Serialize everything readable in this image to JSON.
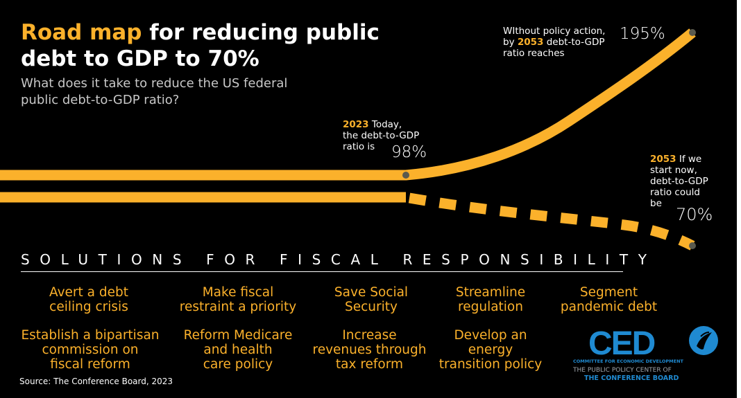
{
  "title": {
    "highlight": "Road map",
    "rest": " for reducing public debt to GDP to 70%"
  },
  "subtitle": "What does it take to reduce the US federal public debt-to-GDP ratio?",
  "annotations": {
    "today": {
      "year": "2023",
      "text_a": " Today,",
      "text_b": "the debt-to-GDP",
      "text_c": "ratio is",
      "value": "98%"
    },
    "no_action": {
      "line1": "WIthout policy action,",
      "prefix": "by ",
      "year": "2053",
      "suffix": " debt-to-GDP",
      "line3": "ratio reaches",
      "value": "195%"
    },
    "start_now": {
      "year": "2053",
      "text_a": " If we",
      "text_b": "start now,",
      "text_c": "debt-to-GDP",
      "text_d": "ratio could",
      "text_e": "be",
      "value": "70%"
    }
  },
  "solutions": {
    "header": "SOLUTIONS FOR FISCAL RESPONSIBILITY",
    "items": [
      "Avert a debt\nceiling crisis",
      "Make fiscal\nrestraint a priority",
      "Save Social\nSecurity",
      "Streamline\nregulation",
      "Segment\npandemic debt",
      "Establish a bipartisan\ncommission on\nfiscal reform",
      "Reform Medicare\nand health\ncare policy",
      "Increase\nrevenues through\ntax reform",
      "Develop an\nenergy\ntransition policy"
    ]
  },
  "source": "Source: The Conference Board, 2023",
  "logo": {
    "name": "CED",
    "line1": "COMMITTEE FOR ECONOMIC DEVELOPMENT",
    "line2": "THE PUBLIC POLICY CENTER OF",
    "line3": "THE CONFERENCE BOARD"
  },
  "colors": {
    "background": "#000000",
    "accent": "#fbb12b",
    "text": "#ffffff",
    "subtitle": "#c8c8c8",
    "logo_blue": "#1f8ad1",
    "marker": "#5a5a4e"
  },
  "chart_data": {
    "type": "line",
    "series": [
      {
        "points": [
          {
            "x": 2023,
            "y": 98
          },
          {
            "x": 2053,
            "y": 195
          }
        ],
        "style": "solid"
      },
      {
        "points": [
          {
            "x": 2023,
            "y": 98
          },
          {
            "x": 2053,
            "y": 70
          }
        ],
        "style": "dashed"
      }
    ]
  }
}
